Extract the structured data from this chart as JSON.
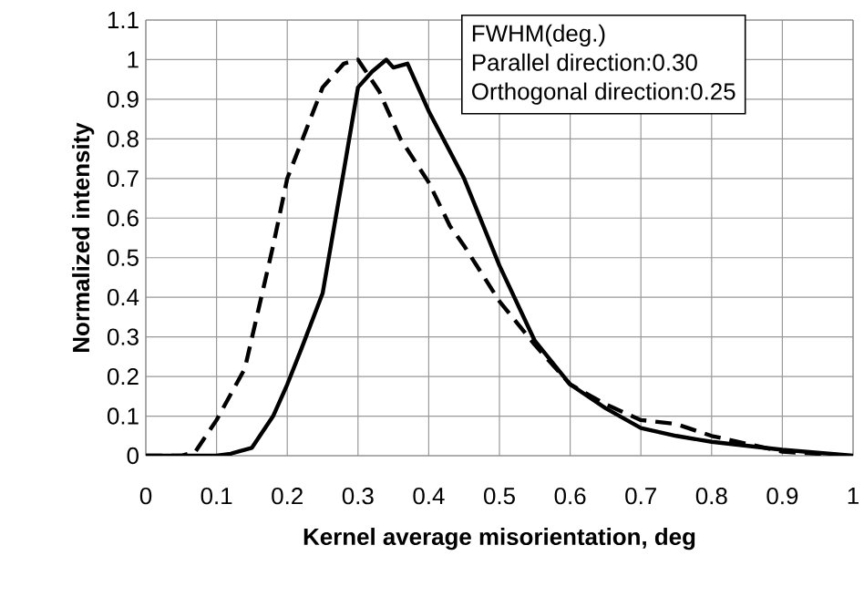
{
  "chart_data": {
    "type": "line",
    "xlabel": "Kernel average misorientation, deg",
    "ylabel": "Normalized intensity",
    "annotations": [
      "FWHM(deg.)",
      "Parallel direction:0.30",
      "Orthogonal direction:0.25"
    ],
    "xlim": [
      0,
      1
    ],
    "xticks": [
      0,
      0.1,
      0.2,
      0.3,
      0.4,
      0.5,
      0.6,
      0.7,
      0.8,
      0.9,
      1
    ],
    "ylim": [
      0,
      1.1
    ],
    "yticks": [
      0,
      0.1,
      0.2,
      0.3,
      0.4,
      0.5,
      0.6,
      0.7,
      0.8,
      0.9,
      1,
      1.1
    ],
    "grid": true,
    "marker": "none",
    "series": [
      {
        "color": "#000000",
        "line_style": "solid",
        "x": [
          0,
          0.05,
          0.1,
          0.12,
          0.15,
          0.18,
          0.2,
          0.22,
          0.25,
          0.28,
          0.3,
          0.32,
          0.34,
          0.35,
          0.37,
          0.4,
          0.45,
          0.5,
          0.55,
          0.6,
          0.65,
          0.7,
          0.75,
          0.8,
          0.9,
          1.0
        ],
        "values": [
          0,
          0,
          0,
          0.005,
          0.02,
          0.1,
          0.18,
          0.27,
          0.41,
          0.72,
          0.93,
          0.97,
          1.0,
          0.98,
          0.99,
          0.87,
          0.7,
          0.48,
          0.29,
          0.18,
          0.12,
          0.07,
          0.05,
          0.035,
          0.015,
          0.0
        ]
      },
      {
        "color": "#000000",
        "line_style": "dashed",
        "x": [
          0,
          0.05,
          0.07,
          0.1,
          0.14,
          0.18,
          0.2,
          0.25,
          0.28,
          0.3,
          0.33,
          0.36,
          0.4,
          0.43,
          0.45,
          0.5,
          0.55,
          0.6,
          0.65,
          0.7,
          0.75,
          0.8,
          0.85,
          0.9,
          1.0
        ],
        "values": [
          0,
          0,
          0.01,
          0.09,
          0.22,
          0.53,
          0.7,
          0.93,
          0.99,
          1.0,
          0.92,
          0.8,
          0.69,
          0.58,
          0.53,
          0.39,
          0.28,
          0.18,
          0.13,
          0.09,
          0.08,
          0.05,
          0.03,
          0.01,
          0.0
        ]
      }
    ]
  }
}
